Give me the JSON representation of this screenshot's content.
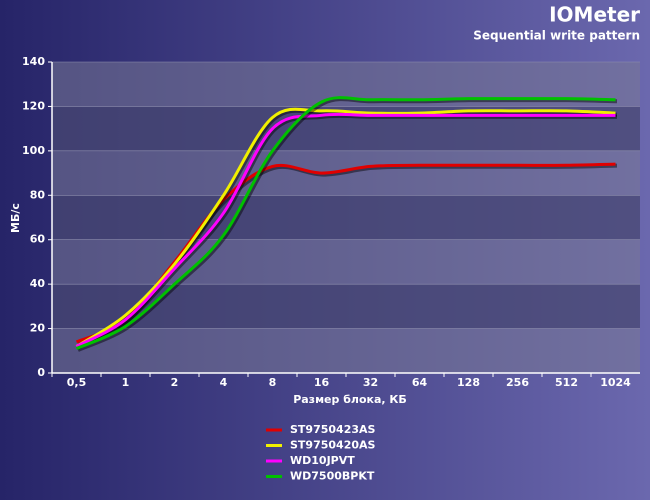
{
  "chart_data": {
    "type": "line",
    "title": "IOMeter",
    "subtitle": "Sequential write pattern",
    "x_label": "Размер блока, КБ",
    "y_label": "МБ/с",
    "categories": [
      "0,5",
      "1",
      "2",
      "4",
      "8",
      "16",
      "32",
      "64",
      "128",
      "256",
      "512",
      "1024"
    ],
    "ylim": [
      0,
      140
    ],
    "yticks": [
      0,
      20,
      40,
      60,
      80,
      100,
      120,
      140
    ],
    "grid": true,
    "series": [
      {
        "name": "ST9750423AS",
        "color": "#e00000",
        "values": [
          14,
          24,
          50,
          78,
          93,
          90,
          93,
          93.5,
          93.5,
          93.5,
          93.5,
          94
        ]
      },
      {
        "name": "ST9750420AS",
        "color": "#f0f000",
        "values": [
          12,
          26,
          49,
          80,
          115,
          118,
          117,
          117,
          118,
          118,
          118,
          117
        ]
      },
      {
        "name": "WD10JPVT",
        "color": "#ff00ff",
        "values": [
          12,
          24,
          47,
          72,
          110,
          116,
          116,
          116,
          116,
          116,
          116,
          116
        ]
      },
      {
        "name": "WD7500BPKT",
        "color": "#00c000",
        "values": [
          11,
          21,
          40,
          62,
          100,
          122,
          123,
          123,
          123.5,
          123.5,
          123.5,
          123
        ]
      }
    ]
  }
}
